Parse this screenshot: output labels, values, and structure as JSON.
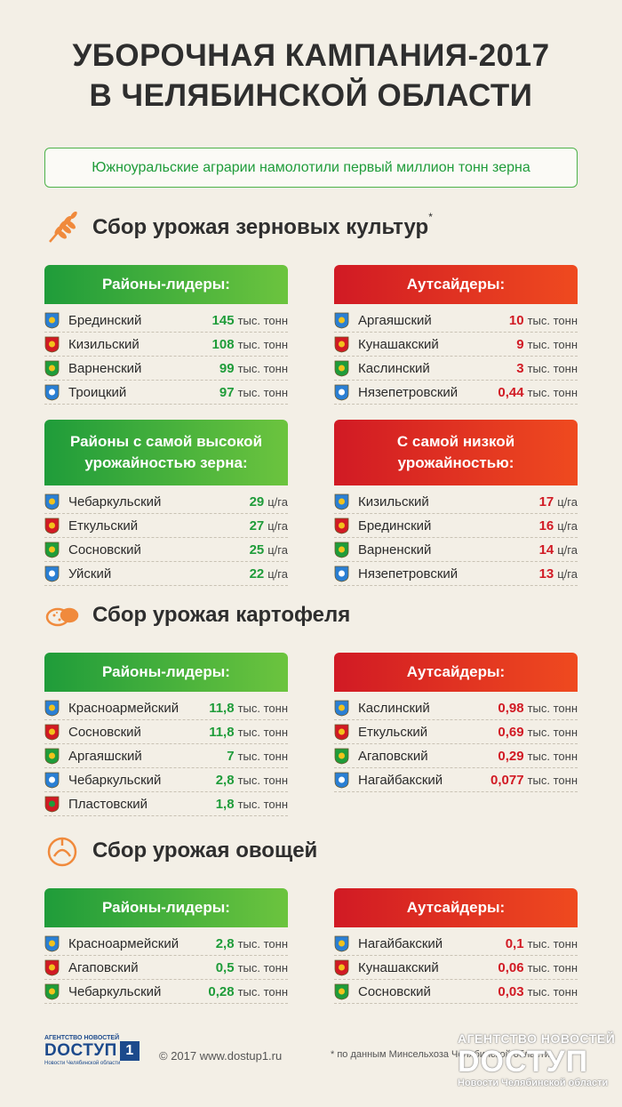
{
  "header": {
    "title_line1": "УБОРОЧНАЯ КАМПАНИЯ-2017",
    "title_line2": "В ЧЕЛЯБИНСКОЙ ОБЛАСТИ",
    "subtitle": "Южноуральские аграрии намолотили первый миллион тонн зерна"
  },
  "colors": {
    "green": "#1f9c3a",
    "red": "#d11a24",
    "orange": "#f08a3c",
    "background": "#f3efe6"
  },
  "grain": {
    "title": "Сбор урожая зерновых культур",
    "footnote_mark": "*",
    "icon": "wheat-icon",
    "leaders": {
      "header": "Районы-лидеры:",
      "rows": [
        {
          "name": "Брединский",
          "value": "145",
          "unit": "тыс. тонн"
        },
        {
          "name": "Кизильский",
          "value": "108",
          "unit": "тыс. тонн"
        },
        {
          "name": "Варненский",
          "value": "99",
          "unit": "тыс. тонн"
        },
        {
          "name": "Троицкий",
          "value": "97",
          "unit": "тыс. тонн"
        }
      ]
    },
    "outsiders": {
      "header": "Аутсайдеры:",
      "rows": [
        {
          "name": "Аргаяшский",
          "value": "10",
          "unit": "тыс. тонн"
        },
        {
          "name": "Кунашакский",
          "value": "9",
          "unit": "тыс. тонн"
        },
        {
          "name": "Каслинский",
          "value": "3",
          "unit": "тыс. тонн"
        },
        {
          "name": "Нязепетровский",
          "value": "0,44",
          "unit": "тыс. тонн"
        }
      ]
    },
    "yield_high": {
      "header_line1": "Районы с самой высокой",
      "header_line2": "урожайностью зерна:",
      "rows": [
        {
          "name": "Чебаркульский",
          "value": "29",
          "unit": "ц/га"
        },
        {
          "name": "Еткульский",
          "value": "27",
          "unit": "ц/га"
        },
        {
          "name": "Сосновский",
          "value": "25",
          "unit": "ц/га"
        },
        {
          "name": "Уйский",
          "value": "22",
          "unit": "ц/га"
        }
      ]
    },
    "yield_low": {
      "header_line1": "С самой низкой",
      "header_line2": "урожайностью:",
      "rows": [
        {
          "name": "Кизильский",
          "value": "17",
          "unit": "ц/га"
        },
        {
          "name": "Брединский",
          "value": "16",
          "unit": "ц/га"
        },
        {
          "name": "Варненский",
          "value": "14",
          "unit": "ц/га"
        },
        {
          "name": "Нязепетровский",
          "value": "13",
          "unit": "ц/га"
        }
      ]
    }
  },
  "potato": {
    "title": "Сбор урожая картофеля",
    "icon": "potato-icon",
    "leaders": {
      "header": "Районы-лидеры:",
      "rows": [
        {
          "name": "Красноармейский",
          "value": "11,8",
          "unit": "тыс. тонн"
        },
        {
          "name": "Сосновский",
          "value": "11,8",
          "unit": "тыс. тонн"
        },
        {
          "name": "Аргаяшский",
          "value": "7",
          "unit": "тыс. тонн"
        },
        {
          "name": "Чебаркульский",
          "value": "2,8",
          "unit": "тыс. тонн"
        },
        {
          "name": "Пластовский",
          "value": "1,8",
          "unit": "тыс. тонн"
        }
      ]
    },
    "outsiders": {
      "header": "Аутсайдеры:",
      "rows": [
        {
          "name": "Каслинский",
          "value": "0,98",
          "unit": "тыс. тонн"
        },
        {
          "name": "Еткульский",
          "value": "0,69",
          "unit": "тыс. тонн"
        },
        {
          "name": "Агаповский",
          "value": "0,29",
          "unit": "тыс. тонн"
        },
        {
          "name": "Нагайбакский",
          "value": "0,077",
          "unit": "тыс. тонн"
        }
      ]
    }
  },
  "vegetables": {
    "title": "Сбор урожая овощей",
    "icon": "vegetables-icon",
    "leaders": {
      "header": "Районы-лидеры:",
      "rows": [
        {
          "name": "Красноармейский",
          "value": "2,8",
          "unit": "тыс. тонн"
        },
        {
          "name": "Агаповский",
          "value": "0,5",
          "unit": "тыс. тонн"
        },
        {
          "name": "Чебаркульский",
          "value": "0,28",
          "unit": "тыс. тонн"
        }
      ]
    },
    "outsiders": {
      "header": "Аутсайдеры:",
      "rows": [
        {
          "name": "Нагайбакский",
          "value": "0,1",
          "unit": "тыс. тонн"
        },
        {
          "name": "Кунашакский",
          "value": "0,06",
          "unit": "тыс. тонн"
        },
        {
          "name": "Сосновский",
          "value": "0,03",
          "unit": "тыс. тонн"
        }
      ]
    }
  },
  "footer": {
    "logo_top": "АГЕНТСТВО НОВОСТЕЙ",
    "logo_main": "DОСТУП",
    "logo_badge": "1",
    "logo_sub": "Новости Челябинской области",
    "copyright": "© 2017 www.dostup1.ru",
    "note": "* по данным Минсельхоза Челябинской области",
    "watermark_top": "АГЕНТСТВО НОВОСТЕЙ",
    "watermark_main": "DОСТУП",
    "watermark_sub": "Новости Челябинской области"
  }
}
